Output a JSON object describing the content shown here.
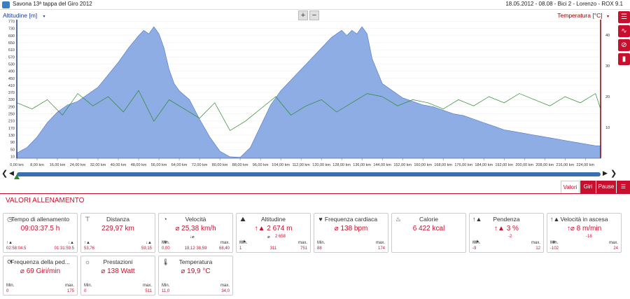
{
  "header": {
    "title": "Savona 13ª tappa del Giro 2012",
    "meta": "18.05.2012  -  08.08  -  Bici 2  -  Lorenzo  -  ROX 9.1"
  },
  "chart": {
    "left_label": "Altitudine [m]",
    "right_label": "Temperatura [°C]",
    "zoom_in": "+",
    "zoom_out": "−",
    "dropdown_glyph": "▾",
    "altitude_color": "#7b9fe0",
    "temp_color": "#2a8a2a"
  },
  "chart_data": {
    "type": "area",
    "x_unit": "km",
    "x_ticks": [
      "0,00 km",
      "8,00 km",
      "16,00 km",
      "24,00 km",
      "32,00 km",
      "40,00 km",
      "48,00 km",
      "56,00 km",
      "64,00 km",
      "72,00 km",
      "80,00 km",
      "88,00 km",
      "96,00 km",
      "104,00 km",
      "112,00 km",
      "120,00 km",
      "128,00 km",
      "136,00 km",
      "144,00 km",
      "152,00 km",
      "160,00 km",
      "168,00 km",
      "176,00 km",
      "184,00 km",
      "192,00 km",
      "200,00 km",
      "208,00 km",
      "216,00 km",
      "224,00 km"
    ],
    "y_ticks": [
      "0",
      "30",
      "60",
      "90",
      "120",
      "150",
      "180",
      "210",
      "240",
      "270",
      "300",
      "330",
      "360",
      "390",
      "420",
      "450",
      "480",
      "510",
      "540",
      "570",
      "600",
      "630",
      "660",
      "690",
      "720",
      "750",
      "780",
      "810"
    ],
    "y_tick_labels_shown": [
      "10",
      "50",
      "90",
      "130",
      "170",
      "210",
      "250",
      "290",
      "330",
      "370",
      "410",
      "450",
      "490",
      "530",
      "570",
      "610",
      "650",
      "690",
      "730",
      "770"
    ],
    "y2_ticks": [
      "10",
      "20",
      "30",
      "40"
    ],
    "ylim": [
      0,
      780
    ],
    "y2lim": [
      0,
      45
    ],
    "series": [
      {
        "name": "Altitudine",
        "x": [
          0,
          4,
          8,
          12,
          16,
          20,
          24,
          28,
          32,
          36,
          40,
          44,
          48,
          50,
          52,
          54,
          56,
          58,
          60,
          62,
          64,
          68,
          72,
          76,
          80,
          84,
          88,
          92,
          96,
          100,
          104,
          108,
          112,
          116,
          120,
          124,
          126,
          128,
          130,
          132,
          134,
          136,
          138,
          140,
          144,
          148,
          152,
          156,
          160,
          164,
          168,
          172,
          176,
          180,
          184,
          188,
          192,
          196,
          200,
          204,
          208,
          212,
          216,
          220,
          224,
          228,
          230
        ],
        "values": [
          30,
          60,
          120,
          200,
          260,
          300,
          320,
          360,
          400,
          470,
          540,
          620,
          690,
          720,
          700,
          740,
          700,
          620,
          500,
          420,
          380,
          330,
          220,
          120,
          40,
          8,
          5,
          60,
          180,
          300,
          380,
          440,
          500,
          560,
          620,
          680,
          700,
          720,
          690,
          720,
          700,
          740,
          700,
          560,
          420,
          380,
          340,
          320,
          300,
          290,
          270,
          250,
          240,
          220,
          200,
          180,
          160,
          150,
          140,
          130,
          120,
          110,
          100,
          90,
          80,
          70,
          70
        ]
      },
      {
        "name": "Temperatura",
        "x": [
          0,
          6,
          12,
          18,
          24,
          30,
          36,
          42,
          48,
          54,
          60,
          66,
          72,
          78,
          84,
          90,
          96,
          102,
          108,
          114,
          120,
          126,
          132,
          138,
          144,
          150,
          156,
          162,
          168,
          174,
          180,
          186,
          192,
          198,
          204,
          210,
          216,
          222,
          228,
          230
        ],
        "values": [
          18,
          16,
          19,
          14,
          21,
          17,
          20,
          15,
          22,
          12,
          19,
          16,
          13,
          18,
          9,
          12,
          16,
          20,
          14,
          17,
          19,
          15,
          18,
          21,
          20,
          17,
          19,
          18,
          16,
          19,
          17,
          20,
          18,
          21,
          19,
          17,
          20,
          18,
          21,
          16
        ]
      }
    ]
  },
  "toolbar": {
    "buttons": [
      {
        "icon": "☰"
      },
      {
        "icon": "∿"
      },
      {
        "icon": "⊘"
      },
      {
        "icon": "▮"
      }
    ]
  },
  "nav": {
    "left_arrow": "❮",
    "right_arrow": "❯",
    "scroll_left": "◀",
    "scroll_right": "▶"
  },
  "tabs": [
    {
      "label": "Valori",
      "active": true
    },
    {
      "label": "Giri",
      "active": false
    },
    {
      "label": "Pause",
      "active": false
    },
    {
      "label": "☰",
      "active": false
    }
  ],
  "section": {
    "title": "VALORI ALLENAMENTO"
  },
  "cards": [
    {
      "icon": "◷",
      "title": "Tempo di allenamento",
      "value": "09:03:37.5 h",
      "left_label": "↑▲",
      "right_label": "↓▲",
      "min_label": "",
      "max_label": "",
      "min": "02:58:04.5",
      "max": "01:31:59.5",
      "mid": ""
    },
    {
      "icon": "⊤",
      "title": "Distanza",
      "value": "229,97 km",
      "left_label": "↑▲",
      "right_label": "↓▲",
      "min_label": "",
      "max_label": "",
      "min": "53,76",
      "max": "59,15",
      "mid": ""
    },
    {
      "icon": "◔",
      "title": "Velocità",
      "value": "⌀ 25,38 km/h",
      "left_label": "Min.",
      "right_label": "max.",
      "min_label": "↑⌀",
      "max_label": "↓⌀",
      "min": "0,00",
      "max": "68,40",
      "mid": "18,12    38,59"
    },
    {
      "icon": "⛰",
      "title": "Altitudine",
      "value": "↑▲ 2 674 m",
      "left_label": "Min.",
      "right_label": "max.",
      "min_label": "↓▲",
      "max_label": "⌀",
      "min": "1",
      "max": "751",
      "mid": "311",
      "sub": "2 658"
    },
    {
      "icon": "♥",
      "title": "Frequenza cardiaca",
      "value": "⌀ 138 bpm",
      "left_label": "Min.",
      "right_label": "max.",
      "min_label": "",
      "max_label": "",
      "min": "88",
      "max": "174",
      "mid": ""
    },
    {
      "icon": "♨",
      "title": "Calorie",
      "value": "6 422 kcal",
      "left_label": "",
      "right_label": "",
      "min_label": "",
      "max_label": "",
      "min": "",
      "max": "",
      "mid": ""
    },
    {
      "icon": "↑▲",
      "title": "Pendenza",
      "value": "↑▲ 3 %",
      "left_label": "Min.",
      "right_label": "max.",
      "min_label": "↓▲",
      "max_label": "",
      "min": "-9",
      "max": "12",
      "mid": "",
      "sub": "-2"
    },
    {
      "icon": "↑▲",
      "title": "Velocità in ascesa",
      "value": "↑⌀ 8 m/min",
      "left_label": "Min.",
      "right_label": "max.",
      "min_label": "↓⌀",
      "max_label": "",
      "min": "-102",
      "max": "24",
      "mid": "",
      "sub": "-18"
    },
    {
      "icon": "⟳",
      "title": "Frequenza della ped...",
      "value": "⌀ 69 Giri/min",
      "left_label": "Min.",
      "right_label": "max.",
      "min_label": "",
      "max_label": "",
      "min": "0",
      "max": "175",
      "mid": ""
    },
    {
      "icon": "☼",
      "title": "Prestazioni",
      "value": "⌀ 138 Watt",
      "left_label": "Min.",
      "right_label": "max.",
      "min_label": "",
      "max_label": "",
      "min": "0",
      "max": "511",
      "mid": ""
    },
    {
      "icon": "🌡",
      "title": "Temperatura",
      "value": "⌀ 19,9 °C",
      "left_label": "Min.",
      "right_label": "max.",
      "min_label": "",
      "max_label": "",
      "min": "11,0",
      "max": "34,0",
      "mid": ""
    }
  ]
}
